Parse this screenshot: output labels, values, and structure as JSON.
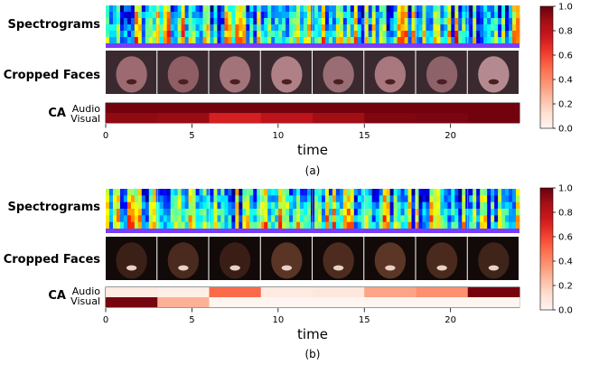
{
  "panels": [
    {
      "row_labels": [
        "Spectrograms",
        "Cropped Faces",
        "CA"
      ],
      "ca_row_labels": [
        "Audio",
        "Visual"
      ],
      "caption": "(a)",
      "chart_data": {
        "type": "heatmap",
        "xlabel": "time",
        "xlim": [
          0,
          24
        ],
        "xticks": [
          0,
          5,
          10,
          15,
          20
        ],
        "segment_edges": [
          0,
          3,
          6,
          9,
          12,
          15,
          18,
          21,
          24
        ],
        "series": [
          {
            "name": "Audio",
            "values": [
              0.98,
              0.98,
              0.98,
              0.98,
              0.98,
              0.98,
              0.98,
              0.98
            ]
          },
          {
            "name": "Visual",
            "values": [
              0.92,
              0.9,
              0.72,
              0.8,
              0.88,
              0.95,
              0.96,
              0.98
            ]
          }
        ],
        "colormap": "Reds",
        "colorbar": {
          "min": 0.0,
          "max": 1.0,
          "ticks": [
            0.0,
            0.2,
            0.4,
            0.6,
            0.8,
            1.0
          ]
        }
      }
    },
    {
      "row_labels": [
        "Spectrograms",
        "Cropped Faces",
        "CA"
      ],
      "ca_row_labels": [
        "Audio",
        "Visual"
      ],
      "caption": "(b)",
      "chart_data": {
        "type": "heatmap",
        "xlabel": "time",
        "xlim": [
          0,
          24
        ],
        "xticks": [
          0,
          5,
          10,
          15,
          20
        ],
        "segment_edges": [
          0,
          3,
          6,
          9,
          12,
          15,
          18,
          21,
          24
        ],
        "series": [
          {
            "name": "Audio",
            "values": [
              0.06,
              0.04,
              0.5,
              0.06,
              0.08,
              0.32,
              0.38,
              0.97
            ]
          },
          {
            "name": "Visual",
            "values": [
              0.97,
              0.28,
              0.0,
              0.0,
              0.0,
              0.0,
              0.0,
              0.0
            ]
          }
        ],
        "colormap": "Reds",
        "colorbar": {
          "min": 0.0,
          "max": 1.0,
          "ticks": [
            0.0,
            0.2,
            0.4,
            0.6,
            0.8,
            1.0
          ]
        }
      }
    }
  ]
}
